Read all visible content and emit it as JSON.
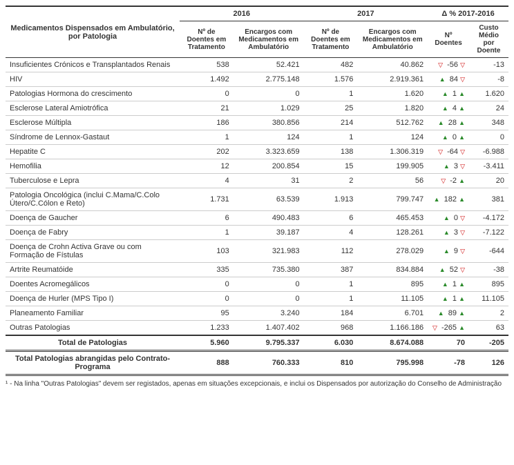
{
  "header": {
    "title": "Medicamentos Dispensados em Ambulatório, por Patologia",
    "year1": "2016",
    "year2": "2017",
    "delta_title": "Δ %\n2017-2016",
    "col_doentes": "Nº de Doentes em Tratamento",
    "col_encargos": "Encargos com Medicamentos em Ambulatório",
    "col_delta_doentes": "Nº Doentes",
    "col_delta_custo": "Custo Médio por Doente"
  },
  "rows": [
    {
      "label": "Insuficientes Crónicos e Transplantados Renais",
      "d1": "538",
      "e1": "52.421",
      "d2": "482",
      "e2": "40.862",
      "dd": "-56",
      "ddir": "down",
      "dc": "-13",
      "cdir": "down"
    },
    {
      "label": "HIV",
      "d1": "1.492",
      "e1": "2.775.148",
      "d2": "1.576",
      "e2": "2.919.361",
      "dd": "84",
      "ddir": "up",
      "dc": "-8",
      "cdir": "down"
    },
    {
      "label": "Patologias Hormona do crescimento",
      "d1": "0",
      "e1": "0",
      "d2": "1",
      "e2": "1.620",
      "dd": "1",
      "ddir": "up",
      "dc": "1.620",
      "cdir": "up"
    },
    {
      "label": "Esclerose Lateral Amiotrófica",
      "d1": "21",
      "e1": "1.029",
      "d2": "25",
      "e2": "1.820",
      "dd": "4",
      "ddir": "up",
      "dc": "24",
      "cdir": "up"
    },
    {
      "label": "Esclerose Múltipla",
      "d1": "186",
      "e1": "380.856",
      "d2": "214",
      "e2": "512.762",
      "dd": "28",
      "ddir": "up",
      "dc": "348",
      "cdir": "up"
    },
    {
      "label": "Síndrome de Lennox-Gastaut",
      "d1": "1",
      "e1": "124",
      "d2": "1",
      "e2": "124",
      "dd": "0",
      "ddir": "up",
      "dc": "0",
      "cdir": "up"
    },
    {
      "label": "Hepatite C",
      "d1": "202",
      "e1": "3.323.659",
      "d2": "138",
      "e2": "1.306.319",
      "dd": "-64",
      "ddir": "down",
      "dc": "-6.988",
      "cdir": "down"
    },
    {
      "label": "Hemofilia",
      "d1": "12",
      "e1": "200.854",
      "d2": "15",
      "e2": "199.905",
      "dd": "3",
      "ddir": "up",
      "dc": "-3.411",
      "cdir": "down"
    },
    {
      "label": "Tuberculose e Lepra",
      "d1": "4",
      "e1": "31",
      "d2": "2",
      "e2": "56",
      "dd": "-2",
      "ddir": "down",
      "dc": "20",
      "cdir": "up"
    },
    {
      "label": "Patologia Oncológica (inclui C.Mama/C.Colo Útero/C.Cólon e Reto)",
      "d1": "1.731",
      "e1": "63.539",
      "d2": "1.913",
      "e2": "799.747",
      "dd": "182",
      "ddir": "up",
      "dc": "381",
      "cdir": "up"
    },
    {
      "label": "Doença de Gaucher",
      "d1": "6",
      "e1": "490.483",
      "d2": "6",
      "e2": "465.453",
      "dd": "0",
      "ddir": "up",
      "dc": "-4.172",
      "cdir": "down"
    },
    {
      "label": "Doença de Fabry",
      "d1": "1",
      "e1": "39.187",
      "d2": "4",
      "e2": "128.261",
      "dd": "3",
      "ddir": "up",
      "dc": "-7.122",
      "cdir": "down"
    },
    {
      "label": "Doença de Crohn Activa Grave ou com Formação de Fístulas",
      "d1": "103",
      "e1": "321.983",
      "d2": "112",
      "e2": "278.029",
      "dd": "9",
      "ddir": "up",
      "dc": "-644",
      "cdir": "down"
    },
    {
      "label": "Artrite Reumatóide",
      "d1": "335",
      "e1": "735.380",
      "d2": "387",
      "e2": "834.884",
      "dd": "52",
      "ddir": "up",
      "dc": "-38",
      "cdir": "down"
    },
    {
      "label": "Doentes Acromegálicos",
      "d1": "0",
      "e1": "0",
      "d2": "1",
      "e2": "895",
      "dd": "1",
      "ddir": "up",
      "dc": "895",
      "cdir": "up"
    },
    {
      "label": "Doença de Hurler (MPS Tipo I)",
      "d1": "0",
      "e1": "0",
      "d2": "1",
      "e2": "11.105",
      "dd": "1",
      "ddir": "up",
      "dc": "11.105",
      "cdir": "up"
    },
    {
      "label": "Planeamento Familiar",
      "d1": "95",
      "e1": "3.240",
      "d2": "184",
      "e2": "6.701",
      "dd": "89",
      "ddir": "up",
      "dc": "2",
      "cdir": "up"
    },
    {
      "label": "Outras Patologias",
      "d1": "1.233",
      "e1": "1.407.402",
      "d2": "968",
      "e2": "1.166.186",
      "dd": "-265",
      "ddir": "down",
      "dc": "63",
      "cdir": "up"
    }
  ],
  "total": {
    "label": "Total de Patologias",
    "d1": "5.960",
    "e1": "9.795.337",
    "d2": "6.030",
    "e2": "8.674.088",
    "dd": "70",
    "dc": "-205"
  },
  "grand": {
    "label": "Total Patologias abrangidas pelo Contrato-Programa",
    "d1": "888",
    "e1": "760.333",
    "d2": "810",
    "e2": "795.998",
    "dd": "-78",
    "dc": "126"
  },
  "footnote": "¹ - Na linha \"Outras Patologias\" devem ser registados, apenas em situações excepcionais, e inclui os Dispensados por autorização do Conselho de Administração"
}
